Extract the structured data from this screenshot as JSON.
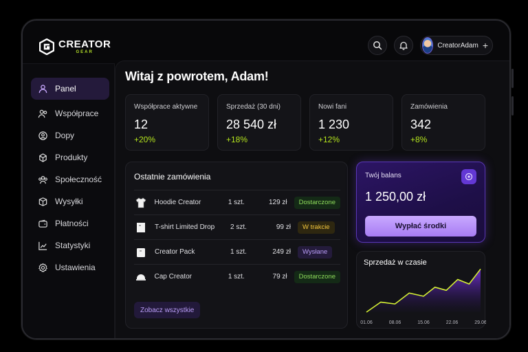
{
  "brand": {
    "name": "CREATOR",
    "sub": "GEAR",
    "accent": "#b7e32a"
  },
  "header": {
    "user_name": "CreatorAdam",
    "search_icon": "search-icon",
    "bell_icon": "bell-icon",
    "add_label": "+"
  },
  "sidebar": {
    "items": [
      {
        "label": "Panel",
        "icon": "users-icon",
        "active": true
      },
      {
        "label": "Współprace",
        "icon": "handshake-icon"
      },
      {
        "label": "Dopy",
        "icon": "drop-icon"
      },
      {
        "label": "Produkty",
        "icon": "box-icon"
      },
      {
        "label": "Społeczność",
        "icon": "community-icon"
      },
      {
        "label": "Wysyłki",
        "icon": "shipping-icon"
      },
      {
        "label": "Płatności",
        "icon": "wallet-icon"
      },
      {
        "label": "Statystyki",
        "icon": "stats-icon"
      },
      {
        "label": "Ustawienia",
        "icon": "gear-icon"
      }
    ]
  },
  "main": {
    "title": "Witaj z powrotem, Adam!",
    "stats": [
      {
        "label": "Współprace aktywne",
        "value": "12",
        "change": "+20%"
      },
      {
        "label": "Sprzedaż (30 dni)",
        "value": "28 540 zł",
        "change": "+18%"
      },
      {
        "label": "Nowi fani",
        "value": "1 230",
        "change": "+12%"
      },
      {
        "label": "Zamówienia",
        "value": "342",
        "change": "+8%"
      }
    ],
    "orders": {
      "title": "Ostatnie zamówienia",
      "rows": [
        {
          "name": "Hoodie Creator",
          "qty": "1 szt.",
          "price": "129 zł",
          "status": "Dostarczone",
          "status_type": "green",
          "icon": "hoodie-icon"
        },
        {
          "name": "T-shirt Limited Drop",
          "qty": "2 szt.",
          "price": "99 zł",
          "status": "W trakcie",
          "status_type": "yellow",
          "icon": "tshirt-icon"
        },
        {
          "name": "Creator Pack",
          "qty": "1 szt.",
          "price": "249 zł",
          "status": "Wysłane",
          "status_type": "purple",
          "icon": "pack-icon"
        },
        {
          "name": "Cap Creator",
          "qty": "1 szt.",
          "price": "79 zł",
          "status": "Dostarczone",
          "status_type": "green",
          "icon": "cap-icon"
        }
      ],
      "see_all": "Zobacz wszystkie"
    },
    "balance": {
      "label": "Twój balans",
      "value": "1 250,00 zł",
      "button": "Wypłać środki",
      "icon": "eye-icon"
    }
  },
  "chart_data": {
    "type": "area",
    "title": "Sprzedaż w czasie",
    "x": [
      "01.06",
      "08.06",
      "15.06",
      "22.06",
      "29.06"
    ],
    "series": [
      {
        "x": [
          0,
          0.5,
          1,
          1.5,
          2,
          2.4,
          2.8,
          3.2,
          3.6,
          4
        ],
        "values": [
          0,
          22,
          18,
          42,
          35,
          55,
          48,
          72,
          62,
          95
        ]
      }
    ],
    "ylim": [
      0,
      100
    ],
    "grid": false,
    "colors": {
      "line": "#d6f233",
      "fill": "#6b2fc9"
    }
  }
}
